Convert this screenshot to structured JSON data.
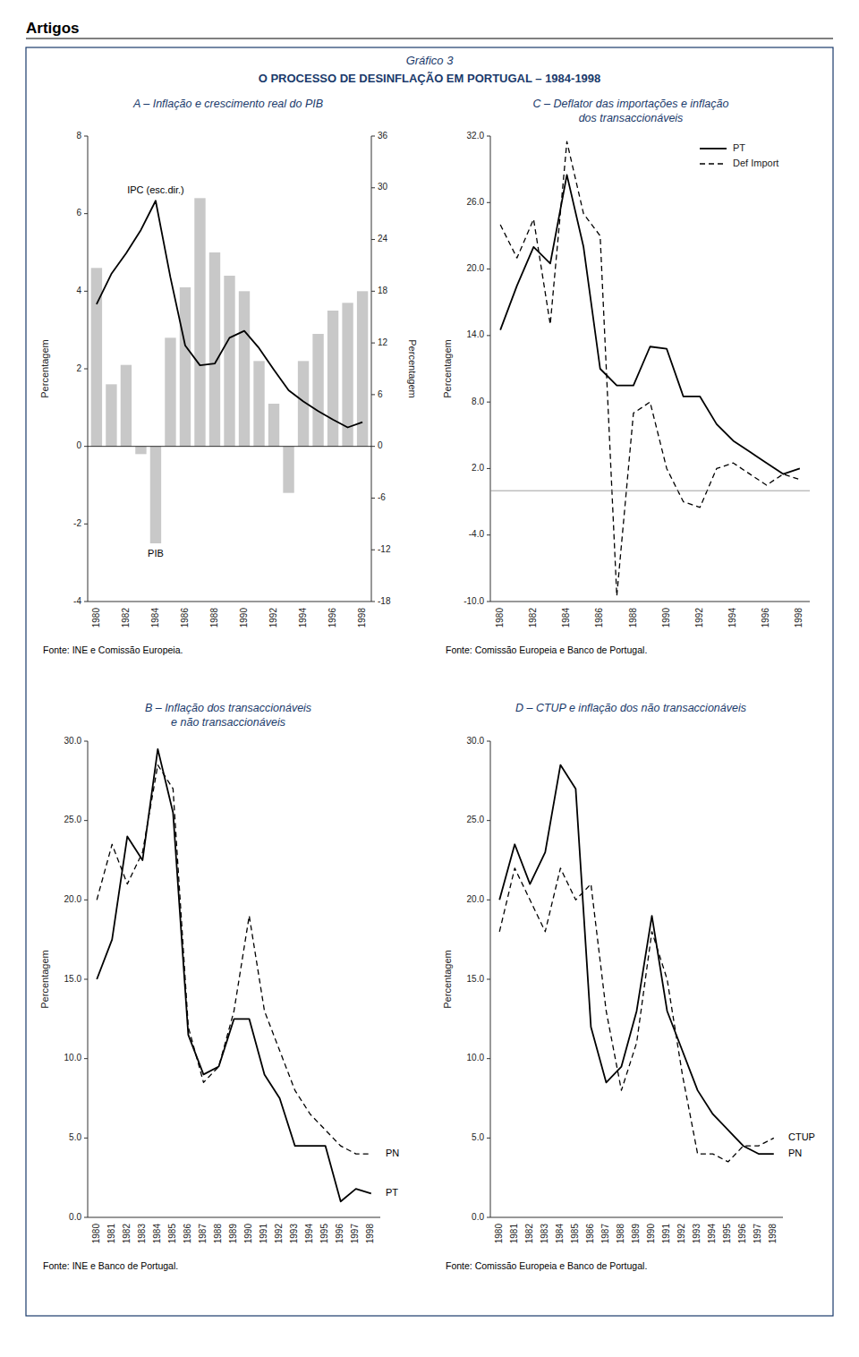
{
  "header": "Artigos",
  "title": "Gráfico 3",
  "subtitle": "O PROCESSO DE DESINFLAÇÃO EM PORTUGAL – 1984-1998",
  "chart_data": [
    {
      "type": "bar",
      "title": "A – Inflação e crescimento real do PIB",
      "categories": [
        "1980",
        null,
        "1982",
        null,
        "1984",
        null,
        "1986",
        null,
        "1988",
        null,
        "1990",
        null,
        "1992",
        null,
        "1994",
        null,
        "1996",
        null,
        "1998"
      ],
      "series": [
        {
          "name": "PIB",
          "type": "bar",
          "color": "#c8c8c8",
          "values": [
            4.6,
            1.6,
            2.1,
            -0.2,
            -2.5,
            2.8,
            4.1,
            6.4,
            5.0,
            4.4,
            4.0,
            2.2,
            1.1,
            -1.2,
            2.2,
            2.9,
            3.5,
            3.7,
            4.0
          ]
        },
        {
          "name": "IPC (esc.dir.)",
          "type": "line",
          "color": "#000000",
          "line_style": "solid",
          "axis": "y2",
          "values": [
            16.5,
            20.0,
            22.4,
            25.1,
            28.5,
            19.6,
            11.7,
            9.4,
            9.6,
            12.6,
            13.4,
            11.4,
            8.9,
            6.5,
            5.2,
            4.1,
            3.1,
            2.2,
            2.8
          ]
        }
      ],
      "ylim": [
        -4,
        8
      ],
      "yticks": [
        -4,
        -2,
        0,
        2,
        4,
        6,
        8
      ],
      "y2lim": [
        -18,
        36
      ],
      "y2ticks": [
        -18,
        -12,
        -6,
        0,
        6,
        12,
        18,
        24,
        30,
        36
      ],
      "ylabel": "Percentagem",
      "y2label": "Percentagem",
      "source": "Fonte: INE e Comissão Europeia.",
      "grid": false
    },
    {
      "type": "line",
      "title": "C – Deflator das importações e inflação",
      "subtitle": "dos transaccionáveis",
      "categories": [
        "1980",
        null,
        "1982",
        null,
        "1984",
        null,
        "1986",
        null,
        "1988",
        null,
        "1990",
        null,
        "1992",
        null,
        "1994",
        null,
        "1996",
        null,
        "1998"
      ],
      "series": [
        {
          "name": "PT",
          "color": "#000000",
          "line_style": "solid",
          "values": [
            14.5,
            18.5,
            22.0,
            20.5,
            28.5,
            22.0,
            11.0,
            9.5,
            9.5,
            13.0,
            12.8,
            8.5,
            8.5,
            6.0,
            4.5,
            3.5,
            2.5,
            1.5,
            2.0
          ]
        },
        {
          "name": "Def Import",
          "color": "#000000",
          "line_style": "dashed",
          "values": [
            24.0,
            21.0,
            24.5,
            15.0,
            31.5,
            25.0,
            23.0,
            -9.5,
            7.0,
            8.0,
            2.0,
            -1.0,
            -1.5,
            2.0,
            2.5,
            1.5,
            0.5,
            1.5,
            1.0
          ]
        }
      ],
      "ylim": [
        -10,
        32
      ],
      "yticks": [
        {
          "value": -10,
          "label": "-10.0"
        },
        {
          "value": -4,
          "label": "-4.0"
        },
        {
          "value": 2,
          "label": "2.0"
        },
        {
          "value": 8,
          "label": "8.0"
        },
        {
          "value": 14,
          "label": "14.0"
        },
        {
          "value": 20,
          "label": "20.0"
        },
        {
          "value": 26,
          "label": "26.0"
        },
        {
          "value": 32,
          "label": "32.0"
        }
      ],
      "ylabel": "Percentagem",
      "legend": "upper right",
      "source": "Fonte: Comissão Europeia e Banco de Portugal.",
      "grid": false
    },
    {
      "type": "line",
      "title": "B – Inflação dos transaccionáveis",
      "subtitle": "e não transaccionáveis",
      "categories": [
        "1980",
        "1981",
        "1982",
        "1983",
        "1984",
        "1985",
        "1986",
        "1987",
        "1988",
        "1989",
        "1990",
        "1991",
        "1992",
        "1993",
        "1994",
        "1995",
        "1996",
        "1997",
        "1998"
      ],
      "series": [
        {
          "name": "PT",
          "color": "#000000",
          "line_style": "solid",
          "values": [
            15.0,
            17.5,
            24.0,
            22.5,
            29.5,
            25.5,
            11.5,
            9.0,
            9.5,
            12.5,
            12.5,
            9.0,
            7.5,
            4.5,
            4.5,
            4.5,
            1.0,
            1.8,
            1.5
          ]
        },
        {
          "name": "PN",
          "color": "#000000",
          "line_style": "dashed",
          "values": [
            20.0,
            23.5,
            21.0,
            23.0,
            28.5,
            27.0,
            12.0,
            8.5,
            9.5,
            13.0,
            19.0,
            13.0,
            10.5,
            8.0,
            6.5,
            5.5,
            4.5,
            4.0,
            4.0
          ]
        }
      ],
      "ylim": [
        0,
        30
      ],
      "yticks": [
        {
          "value": 0,
          "label": "0.0"
        },
        {
          "value": 5,
          "label": "5.0"
        },
        {
          "value": 10,
          "label": "10.0"
        },
        {
          "value": 15,
          "label": "15.0"
        },
        {
          "value": 20,
          "label": "20.0"
        },
        {
          "value": 25,
          "label": "25.0"
        },
        {
          "value": 30,
          "label": "30.0"
        }
      ],
      "ylabel": "Percentagem",
      "source": "Fonte: INE e Banco de Portugal.",
      "grid": false
    },
    {
      "type": "line",
      "title": "D – CTUP e inflação dos não transaccionáveis",
      "categories": [
        "1980",
        "1981",
        "1982",
        "1983",
        "1984",
        "1985",
        "1986",
        "1987",
        "1988",
        "1989",
        "1990",
        "1991",
        "1992",
        "1993",
        "1994",
        "1995",
        "1996",
        "1997",
        "1998"
      ],
      "series": [
        {
          "name": "PN",
          "color": "#000000",
          "line_style": "solid",
          "values": [
            20.0,
            23.5,
            21.0,
            23.0,
            28.5,
            27.0,
            12.0,
            8.5,
            9.5,
            13.0,
            19.0,
            13.0,
            10.5,
            8.0,
            6.5,
            5.5,
            4.5,
            4.0,
            4.0
          ]
        },
        {
          "name": "CTUP",
          "color": "#000000",
          "line_style": "dashed",
          "values": [
            18.0,
            22.0,
            20.0,
            18.0,
            22.0,
            20.0,
            21.0,
            13.0,
            8.0,
            11.0,
            18.0,
            15.0,
            9.0,
            4.0,
            4.0,
            3.5,
            4.5,
            4.5,
            5.0
          ]
        }
      ],
      "ylim": [
        0,
        30
      ],
      "yticks": [
        {
          "value": 0,
          "label": "0.0"
        },
        {
          "value": 5,
          "label": "5.0"
        },
        {
          "value": 10,
          "label": "10.0"
        },
        {
          "value": 15,
          "label": "15.0"
        },
        {
          "value": 20,
          "label": "20.0"
        },
        {
          "value": 25,
          "label": "25.0"
        },
        {
          "value": 30,
          "label": "30.0"
        }
      ],
      "ylabel": "Percentagem",
      "source": "Fonte: Comissão Europeia e Banco de Portugal.",
      "grid": false
    }
  ]
}
